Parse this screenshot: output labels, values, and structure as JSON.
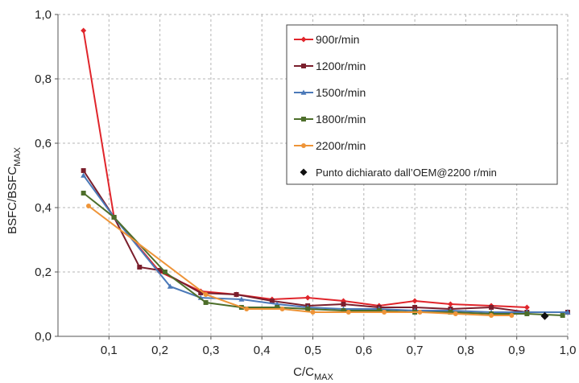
{
  "chart_data": {
    "type": "line",
    "xlabel": {
      "main": "C/C",
      "sub": "MAX"
    },
    "ylabel": {
      "main": "BSFC/BSFC",
      "sub": "MAX"
    },
    "xlim": [
      0.0,
      1.0
    ],
    "ylim": [
      0.0,
      1.0
    ],
    "x_ticks": [
      "0,1",
      "0,2",
      "0,3",
      "0,4",
      "0,5",
      "0,6",
      "0,7",
      "0,8",
      "0,9",
      "1,0"
    ],
    "y_ticks": [
      "0,0",
      "0,2",
      "0,4",
      "0,6",
      "0,8",
      "1,0"
    ],
    "grid": {
      "vertical": true,
      "horizontal": "major",
      "style": "dashed"
    },
    "legend_position": "top-right",
    "series": [
      {
        "name": "900r/min",
        "color": "#e0252b",
        "marker": "diamond",
        "points": [
          [
            0.05,
            0.95
          ],
          [
            0.11,
            0.37
          ],
          [
            0.2,
            0.2
          ],
          [
            0.28,
            0.14
          ],
          [
            0.35,
            0.13
          ],
          [
            0.42,
            0.115
          ],
          [
            0.49,
            0.12
          ],
          [
            0.56,
            0.11
          ],
          [
            0.63,
            0.095
          ],
          [
            0.7,
            0.11
          ],
          [
            0.77,
            0.1
          ],
          [
            0.85,
            0.095
          ],
          [
            0.92,
            0.09
          ]
        ]
      },
      {
        "name": "1200r/min",
        "color": "#7a1e2c",
        "marker": "square",
        "points": [
          [
            0.05,
            0.515
          ],
          [
            0.11,
            0.37
          ],
          [
            0.16,
            0.215
          ],
          [
            0.2,
            0.205
          ],
          [
            0.28,
            0.135
          ],
          [
            0.35,
            0.13
          ],
          [
            0.42,
            0.11
          ],
          [
            0.49,
            0.095
          ],
          [
            0.56,
            0.1
          ],
          [
            0.63,
            0.09
          ],
          [
            0.7,
            0.09
          ],
          [
            0.77,
            0.085
          ],
          [
            0.85,
            0.09
          ],
          [
            0.92,
            0.075
          ],
          [
            1.0,
            0.075
          ]
        ]
      },
      {
        "name": "1500r/min",
        "color": "#4b79b8",
        "marker": "triangle",
        "points": [
          [
            0.05,
            0.5
          ],
          [
            0.11,
            0.37
          ],
          [
            0.22,
            0.155
          ],
          [
            0.28,
            0.12
          ],
          [
            0.36,
            0.115
          ],
          [
            0.43,
            0.1
          ],
          [
            0.49,
            0.09
          ],
          [
            0.56,
            0.085
          ],
          [
            0.63,
            0.085
          ],
          [
            0.7,
            0.08
          ],
          [
            0.77,
            0.08
          ],
          [
            0.85,
            0.075
          ],
          [
            0.92,
            0.075
          ],
          [
            1.0,
            0.075
          ]
        ]
      },
      {
        "name": "1800r/min",
        "color": "#4d6e2a",
        "marker": "square",
        "points": [
          [
            0.05,
            0.445
          ],
          [
            0.11,
            0.37
          ],
          [
            0.21,
            0.2
          ],
          [
            0.29,
            0.105
          ],
          [
            0.36,
            0.09
          ],
          [
            0.43,
            0.09
          ],
          [
            0.49,
            0.085
          ],
          [
            0.56,
            0.08
          ],
          [
            0.63,
            0.08
          ],
          [
            0.7,
            0.075
          ],
          [
            0.77,
            0.075
          ],
          [
            0.85,
            0.07
          ],
          [
            0.92,
            0.07
          ],
          [
            0.99,
            0.065
          ]
        ]
      },
      {
        "name": "2200r/min",
        "color": "#ee9438",
        "marker": "circle",
        "points": [
          [
            0.06,
            0.405
          ],
          [
            0.29,
            0.13
          ],
          [
            0.37,
            0.085
          ],
          [
            0.44,
            0.085
          ],
          [
            0.5,
            0.075
          ],
          [
            0.57,
            0.075
          ],
          [
            0.64,
            0.075
          ],
          [
            0.71,
            0.075
          ],
          [
            0.78,
            0.07
          ],
          [
            0.85,
            0.065
          ],
          [
            0.89,
            0.065
          ]
        ]
      },
      {
        "name": "Punto dichiarato dall’OEM@2200 r/min",
        "color": "#111111",
        "marker": "diamond",
        "points": [
          [
            0.955,
            0.063
          ]
        ]
      }
    ]
  }
}
